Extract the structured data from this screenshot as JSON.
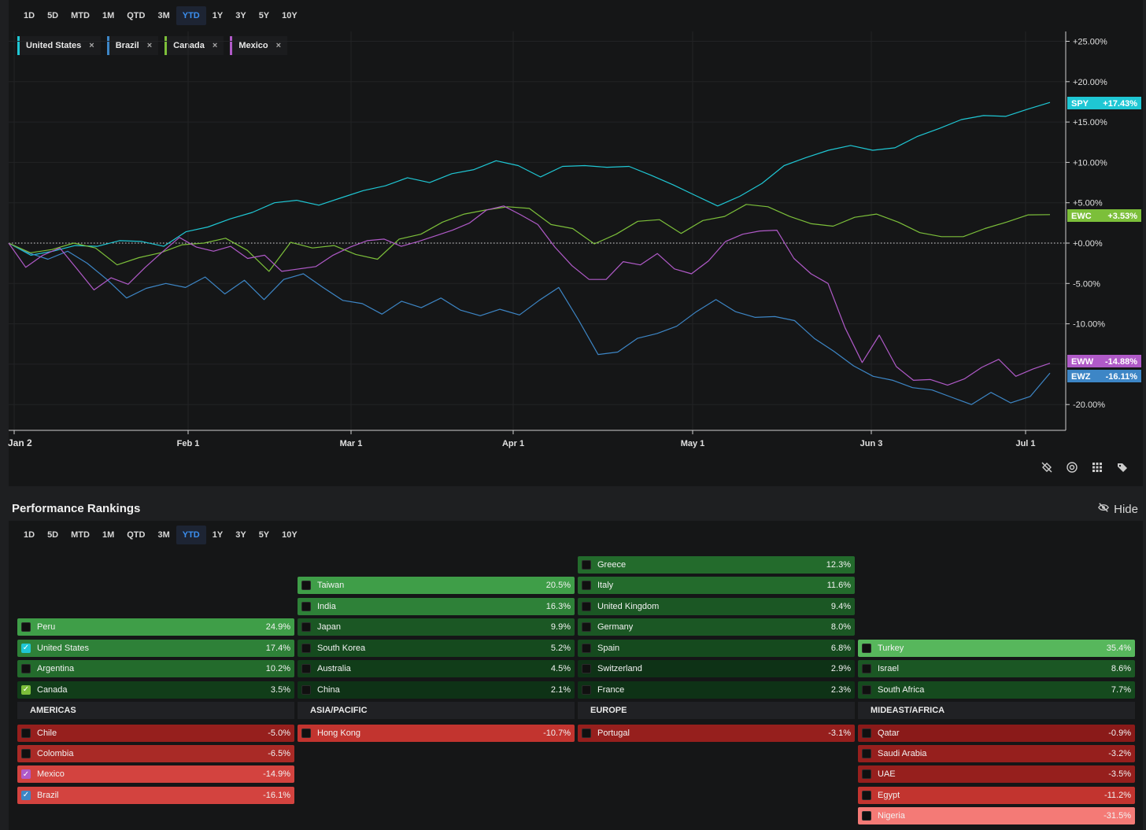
{
  "timeframes": [
    "1D",
    "5D",
    "MTD",
    "1M",
    "QTD",
    "3M",
    "YTD",
    "1Y",
    "3Y",
    "5Y",
    "10Y"
  ],
  "active_timeframe": "YTD",
  "legend": [
    {
      "label": "United States",
      "color": "#1fc7d4"
    },
    {
      "label": "Brazil",
      "color": "#3d86c6"
    },
    {
      "label": "Canada",
      "color": "#7cbf3a"
    },
    {
      "label": "Mexico",
      "color": "#b05ac8"
    }
  ],
  "legend_close": "×",
  "chart_data": {
    "type": "line",
    "x_ticks": [
      "Jan 2",
      "Feb 1",
      "Mar 1",
      "Apr 1",
      "May 1",
      "Jun 3",
      "Jul 1"
    ],
    "y_ticks": [
      "+25.00%",
      "+20.00%",
      "+15.00%",
      "+10.00%",
      "+5.00%",
      "+0.00%",
      "-5.00%",
      "-10.00%",
      "-20.00%"
    ],
    "ylim": [
      -22,
      26
    ],
    "baseline": 0,
    "series": [
      {
        "name": "United States",
        "ticker": "SPY",
        "last": "+17.43%",
        "color": "#1fc7d4",
        "values": [
          0,
          -1.5,
          -1,
          -0.3,
          -0.4,
          0.3,
          0.2,
          -0.4,
          1.4,
          2,
          3,
          3.8,
          5,
          5.3,
          4.7,
          5.6,
          6.5,
          7.1,
          8.1,
          7.5,
          8.6,
          9.1,
          10.2,
          9.6,
          8.2,
          9.5,
          9.6,
          9.4,
          9.5,
          8.4,
          7.2,
          5.9,
          4.6,
          5.8,
          7.4,
          9.6,
          10.6,
          11.5,
          12.1,
          11.5,
          11.8,
          13.2,
          14.2,
          15.3,
          15.8,
          15.7,
          16.6,
          17.43
        ]
      },
      {
        "name": "Brazil",
        "ticker": "EWZ",
        "last": "-16.11%",
        "color": "#3d86c6",
        "values": [
          0,
          -1.2,
          -2,
          -1,
          -2.5,
          -4.5,
          -6.8,
          -5.6,
          -5,
          -5.5,
          -4.2,
          -6.3,
          -4.6,
          -7,
          -4.5,
          -3.8,
          -5.5,
          -7.1,
          -7.5,
          -8.8,
          -7.2,
          -8,
          -6.8,
          -8.3,
          -9,
          -8.2,
          -8.9,
          -7.1,
          -5.5,
          -9.5,
          -13.8,
          -13.5,
          -11.8,
          -11.2,
          -10.3,
          -8.5,
          -7,
          -8.5,
          -9.2,
          -9.1,
          -9.6,
          -11.8,
          -13.4,
          -15.2,
          -16.5,
          -17,
          -17.9,
          -18.2,
          -19.1,
          -20,
          -18.5,
          -19.8,
          -19,
          -16.11
        ]
      },
      {
        "name": "Canada",
        "ticker": "EWC",
        "last": "+3.53%",
        "color": "#7cbf3a",
        "values": [
          0,
          -1.2,
          -0.8,
          0,
          -0.6,
          -2.7,
          -1.8,
          -1.2,
          -0.2,
          0,
          0.6,
          -0.9,
          -3.5,
          0.1,
          -0.6,
          -0.3,
          -1.4,
          -2,
          0.5,
          1.1,
          2.6,
          3.6,
          4.1,
          4.5,
          4.3,
          2.3,
          1.8,
          -0.1,
          1.1,
          2.7,
          2.9,
          1.2,
          2.8,
          3.3,
          4.8,
          4.5,
          3.3,
          2.4,
          2.1,
          3.2,
          3.6,
          2.6,
          1.3,
          0.8,
          0.8,
          1.8,
          2.6,
          3.5,
          3.53
        ]
      },
      {
        "name": "Mexico",
        "ticker": "EWW",
        "last": "-14.88%",
        "color": "#b05ac8",
        "values": [
          0,
          -3,
          -1.5,
          -0.6,
          -3.2,
          -5.8,
          -4.3,
          -5.1,
          -3,
          -1.1,
          0.7,
          -0.5,
          -1,
          -0.4,
          -1.9,
          -1.5,
          -3.5,
          -3.2,
          -2.9,
          -1.5,
          -0.5,
          0.3,
          0.5,
          -0.4,
          0.2,
          0.9,
          1.6,
          2.5,
          4.1,
          4.6,
          3.5,
          2.3,
          -0.5,
          -2.8,
          -4.5,
          -4.5,
          -2.3,
          -2.7,
          -1.3,
          -3.2,
          -3.8,
          -2.2,
          0.2,
          1.1,
          1.5,
          1.6,
          -1.9,
          -3.8,
          -5,
          -10.5,
          -14.8,
          -11.4,
          -15.3,
          -17,
          -16.9,
          -17.6,
          -16.8,
          -15.4,
          -14.4,
          -16.5,
          -15.6,
          -14.88
        ]
      }
    ]
  },
  "rankings": {
    "title": "Performance Rankings",
    "hide_label": "Hide",
    "regions": [
      {
        "name": "AMERICAS",
        "positive": [
          {
            "name": "Peru",
            "pct": "24.9%",
            "checked": false
          },
          {
            "name": "United States",
            "pct": "17.4%",
            "checked": true,
            "check_color": "#1fc7d4"
          },
          {
            "name": "Argentina",
            "pct": "10.2%",
            "checked": false
          },
          {
            "name": "Canada",
            "pct": "3.5%",
            "checked": true,
            "check_color": "#7cbf3a"
          }
        ],
        "negative": [
          {
            "name": "Chile",
            "pct": "-5.0%",
            "checked": false
          },
          {
            "name": "Colombia",
            "pct": "-6.5%",
            "checked": false
          },
          {
            "name": "Mexico",
            "pct": "-14.9%",
            "checked": true,
            "check_color": "#b05ac8"
          },
          {
            "name": "Brazil",
            "pct": "-16.1%",
            "checked": true,
            "check_color": "#3d86c6"
          }
        ]
      },
      {
        "name": "ASIA/PACIFIC",
        "positive": [
          {
            "name": "Taiwan",
            "pct": "20.5%",
            "checked": false
          },
          {
            "name": "India",
            "pct": "16.3%",
            "checked": false
          },
          {
            "name": "Japan",
            "pct": "9.9%",
            "checked": false
          },
          {
            "name": "South Korea",
            "pct": "5.2%",
            "checked": false
          },
          {
            "name": "Australia",
            "pct": "4.5%",
            "checked": false
          },
          {
            "name": "China",
            "pct": "2.1%",
            "checked": false
          }
        ],
        "negative": [
          {
            "name": "Hong Kong",
            "pct": "-10.7%",
            "checked": false
          }
        ]
      },
      {
        "name": "EUROPE",
        "positive": [
          {
            "name": "Greece",
            "pct": "12.3%",
            "checked": false
          },
          {
            "name": "Italy",
            "pct": "11.6%",
            "checked": false
          },
          {
            "name": "United Kingdom",
            "pct": "9.4%",
            "checked": false
          },
          {
            "name": "Germany",
            "pct": "8.0%",
            "checked": false
          },
          {
            "name": "Spain",
            "pct": "6.8%",
            "checked": false
          },
          {
            "name": "Switzerland",
            "pct": "2.9%",
            "checked": false
          },
          {
            "name": "France",
            "pct": "2.3%",
            "checked": false
          }
        ],
        "negative": [
          {
            "name": "Portugal",
            "pct": "-3.1%",
            "checked": false
          }
        ]
      },
      {
        "name": "MIDEAST/AFRICA",
        "positive": [
          {
            "name": "Turkey",
            "pct": "35.4%",
            "checked": false
          },
          {
            "name": "Israel",
            "pct": "8.6%",
            "checked": false
          },
          {
            "name": "South Africa",
            "pct": "7.7%",
            "checked": false
          }
        ],
        "negative": [
          {
            "name": "Qatar",
            "pct": "-0.9%",
            "checked": false
          },
          {
            "name": "Saudi Arabia",
            "pct": "-3.2%",
            "checked": false
          },
          {
            "name": "UAE",
            "pct": "-3.5%",
            "checked": false
          },
          {
            "name": "Egypt",
            "pct": "-11.2%",
            "checked": false
          },
          {
            "name": "Nigeria",
            "pct": "-31.5%",
            "checked": false
          }
        ]
      }
    ]
  },
  "icons": [
    "hide-signals-icon",
    "compare-icon",
    "grid-icon",
    "tags-icon",
    "eye-off-icon"
  ]
}
